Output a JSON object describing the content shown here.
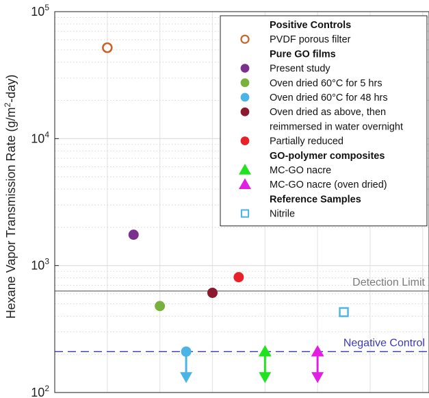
{
  "chart_data": {
    "type": "scatter",
    "ylabel_main": "Hexane Vapor Transmission Rate (g/m",
    "ylabel_sup": "2",
    "ylabel_tail": "-day)",
    "yscale": "log",
    "ylim": [
      100,
      100000
    ],
    "yticks": [
      {
        "value": 100,
        "base": "10",
        "exp": "2"
      },
      {
        "value": 1000,
        "base": "10",
        "exp": "3"
      },
      {
        "value": 10000,
        "base": "10",
        "exp": "4"
      },
      {
        "value": 100000,
        "base": "10",
        "exp": "5"
      }
    ],
    "x_positions": [
      1,
      2,
      3,
      4,
      5,
      6,
      7
    ],
    "grid": true,
    "legend_position": "top-right",
    "reference_lines": [
      {
        "label": "Detection Limit",
        "value": 630,
        "color": "#7a7a7a",
        "style": "solid"
      },
      {
        "label": "Negative Control",
        "value": 210,
        "color": "#3a3ab8",
        "style": "dashed"
      }
    ],
    "legend": [
      {
        "kind": "heading",
        "label": "Positive Controls"
      },
      {
        "kind": "entry",
        "label": "PVDF porous filter",
        "marker": "ring",
        "color": "#c8642a"
      },
      {
        "kind": "heading",
        "label": "Pure GO films"
      },
      {
        "kind": "entry",
        "label": "Present study",
        "marker": "dot",
        "color": "#7b2f8e"
      },
      {
        "kind": "entry",
        "label": "Oven dried 60°C for 5 hrs",
        "marker": "dot",
        "color": "#78b23c"
      },
      {
        "kind": "entry",
        "label": "Oven dried 60°C for 48 hrs",
        "marker": "dot",
        "color": "#4ab4e6"
      },
      {
        "kind": "entry",
        "label": "Oven dried as above, then",
        "label2": "reimmersed in water overnight",
        "marker": "dot",
        "color": "#8b1a2e"
      },
      {
        "kind": "entry",
        "label": "Partially reduced",
        "marker": "dot",
        "color": "#e8202a"
      },
      {
        "kind": "heading",
        "label": "GO-polymer composites"
      },
      {
        "kind": "entry",
        "label": "MC-GO nacre",
        "marker": "triangle",
        "color": "#1ee31e"
      },
      {
        "kind": "entry",
        "label": "MC-GO nacre (oven dried)",
        "marker": "triangle",
        "color": "#e21ee2"
      },
      {
        "kind": "heading",
        "label": "Reference Samples"
      },
      {
        "kind": "entry",
        "label": "Nitrile",
        "marker": "square",
        "color": "#4ab4e6"
      }
    ],
    "series": [
      {
        "name": "PVDF porous filter",
        "marker": "ring",
        "color": "#c8642a",
        "points": [
          {
            "x": 1,
            "y": 52000
          }
        ]
      },
      {
        "name": "Present study",
        "marker": "dot",
        "color": "#7b2f8e",
        "points": [
          {
            "x": 1.5,
            "y": 1750
          }
        ]
      },
      {
        "name": "Oven dried 60°C for 5 hrs",
        "marker": "dot",
        "color": "#78b23c",
        "points": [
          {
            "x": 2,
            "y": 480
          }
        ]
      },
      {
        "name": "Oven dried 60°C for 48 hrs",
        "marker": "dot",
        "color": "#4ab4e6",
        "arrow": "down",
        "points": [
          {
            "x": 2.5,
            "y": 210
          }
        ]
      },
      {
        "name": "Oven dried as above, then reimmersed in water overnight",
        "marker": "dot",
        "color": "#8b1a2e",
        "points": [
          {
            "x": 3,
            "y": 610
          }
        ]
      },
      {
        "name": "Partially reduced",
        "marker": "dot",
        "color": "#e8202a",
        "points": [
          {
            "x": 3.5,
            "y": 810
          }
        ]
      },
      {
        "name": "MC-GO nacre",
        "marker": "triangle",
        "color": "#1ee31e",
        "arrow": "down",
        "points": [
          {
            "x": 4,
            "y": 210
          }
        ]
      },
      {
        "name": "MC-GO nacre (oven dried)",
        "marker": "triangle",
        "color": "#e21ee2",
        "arrow": "down",
        "points": [
          {
            "x": 5,
            "y": 210
          }
        ]
      },
      {
        "name": "Nitrile",
        "marker": "square",
        "color": "#4ab4e6",
        "points": [
          {
            "x": 5.5,
            "y": 430
          }
        ]
      }
    ]
  }
}
